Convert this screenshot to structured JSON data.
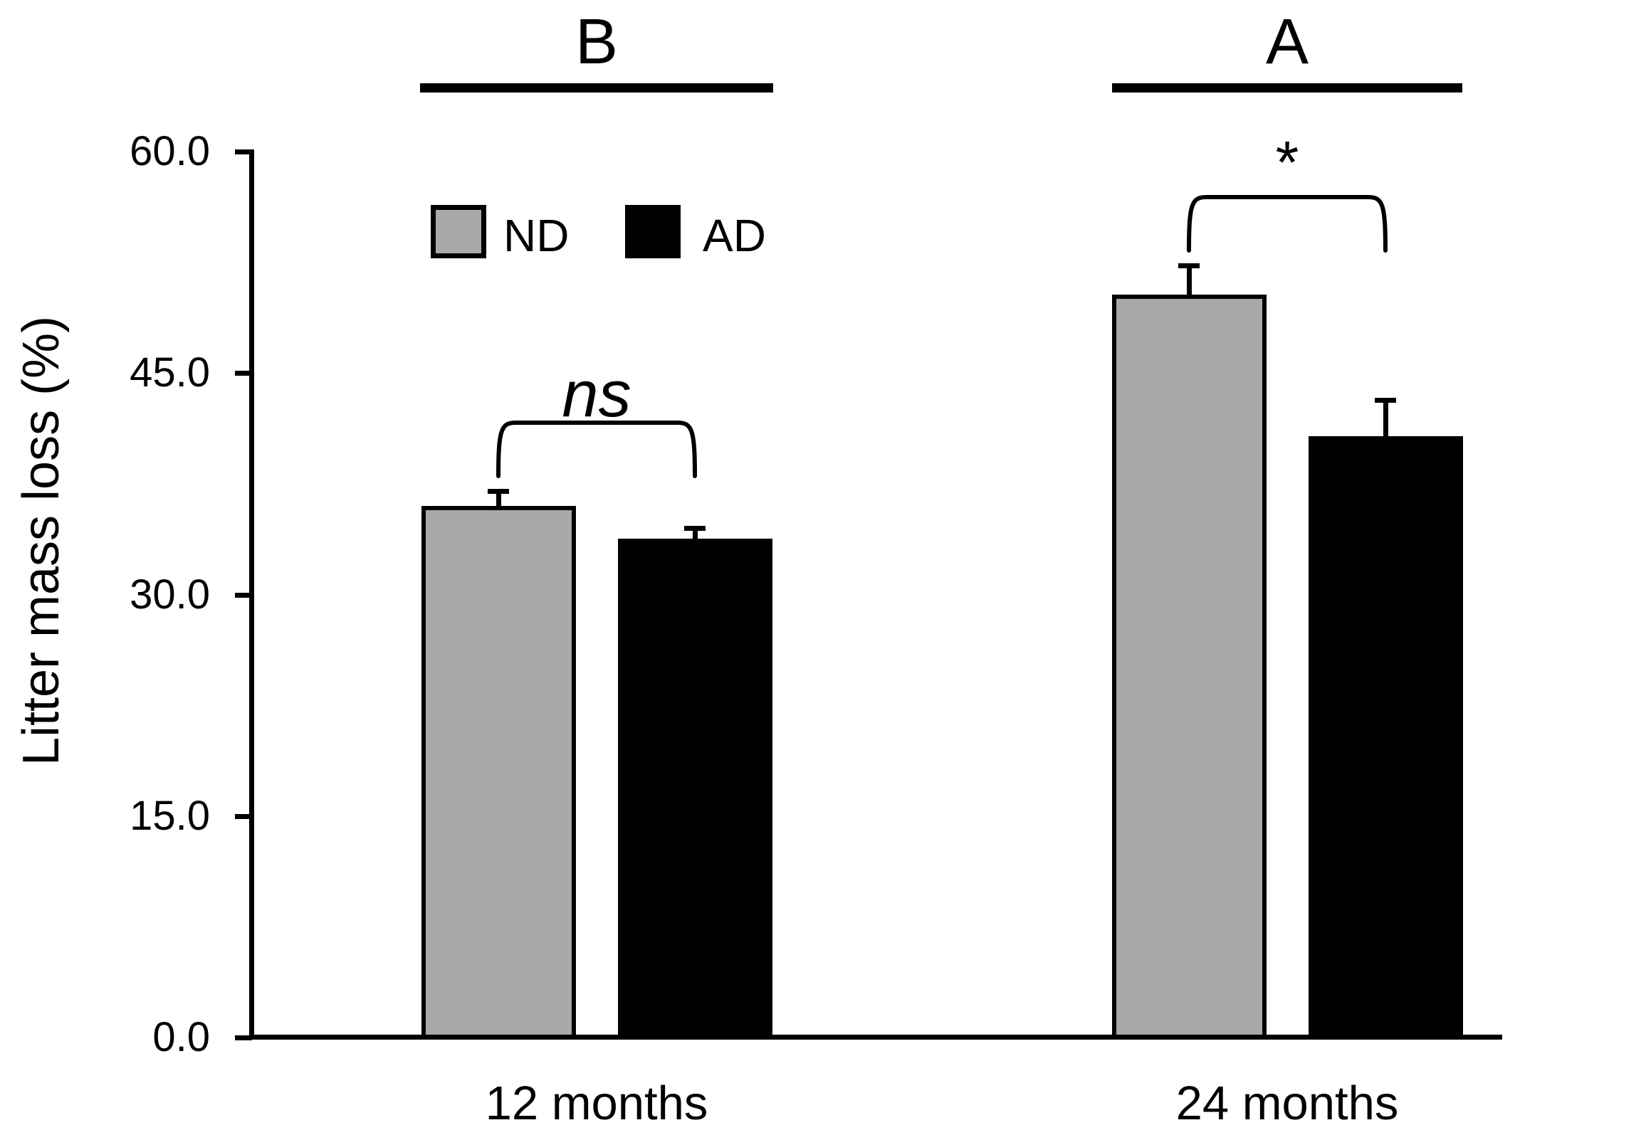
{
  "chart_data": {
    "type": "bar",
    "categories": [
      "12 months",
      "24 months"
    ],
    "series": [
      {
        "name": "ND",
        "color": "#aaa8a8",
        "values": [
          36.0,
          50.3
        ],
        "errors_plus": [
          1.0,
          2.0
        ]
      },
      {
        "name": "AD",
        "color": "#000000",
        "values": [
          33.8,
          40.7
        ],
        "errors_plus": [
          0.7,
          2.5
        ]
      }
    ],
    "title": "",
    "xlabel": "",
    "ylabel": "Litter mass loss (%)",
    "ylim": [
      0,
      60
    ],
    "yticks": [
      0,
      15,
      30,
      45,
      60
    ],
    "y_tick_labels": [
      "0.0",
      "15.0",
      "30.0",
      "45.0",
      "60.0"
    ],
    "grid": false,
    "error_bars": "upper-only",
    "legend_position": "inside-top-left",
    "group_annotations": [
      {
        "category": "12 months",
        "letter": "B",
        "significance": "ns"
      },
      {
        "category": "24 months",
        "letter": "A",
        "significance": "*"
      }
    ]
  }
}
